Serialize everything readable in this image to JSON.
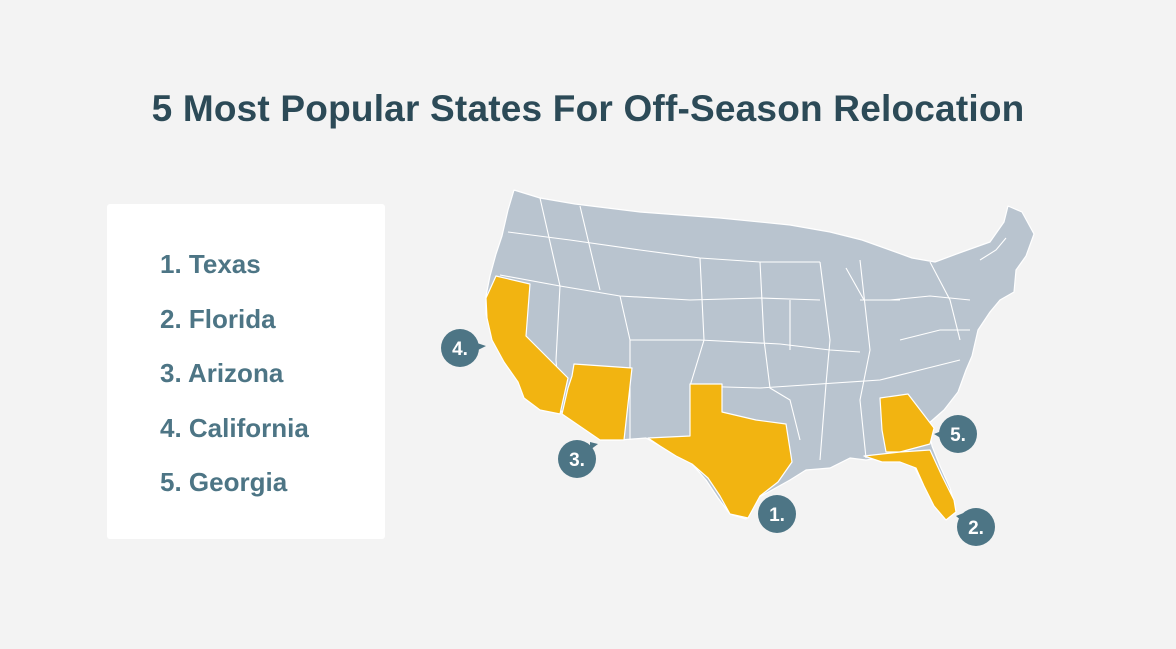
{
  "title": "5 Most Popular States For Off-Season Relocation",
  "ranking": {
    "items": [
      {
        "label": "1. Texas",
        "state": "Texas"
      },
      {
        "label": "2. Florida",
        "state": "Florida"
      },
      {
        "label": "3. Arizona",
        "state": "Arizona"
      },
      {
        "label": "4. California",
        "state": "California"
      },
      {
        "label": "5. Georgia",
        "state": "Georgia"
      }
    ]
  },
  "map": {
    "markers": [
      {
        "label": "1.",
        "state": "Texas"
      },
      {
        "label": "2.",
        "state": "Florida"
      },
      {
        "label": "3.",
        "state": "Arizona"
      },
      {
        "label": "4.",
        "state": "California"
      },
      {
        "label": "5.",
        "state": "Georgia"
      }
    ],
    "colors": {
      "background": "#f3f3f3",
      "highlight": "#f2b411",
      "base_state": "#b9c4cf",
      "marker": "#4d7585",
      "title": "#2c4a57",
      "list_text": "#4d7585"
    }
  }
}
